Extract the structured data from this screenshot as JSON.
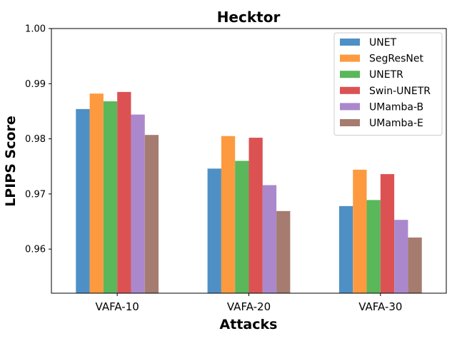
{
  "chart_data": {
    "type": "bar",
    "title": "Hecktor",
    "xlabel": "Attacks",
    "ylabel": "LPIPS Score",
    "categories": [
      "VAFA-10",
      "VAFA-20",
      "VAFA-30"
    ],
    "ylim": [
      0.952,
      1.0
    ],
    "yticks": [
      0.96,
      0.97,
      0.98,
      0.99,
      1.0
    ],
    "ytick_labels": [
      "0.96",
      "0.97",
      "0.98",
      "0.99",
      "1.00"
    ],
    "legend_position": "top-right",
    "grid": false,
    "series": [
      {
        "name": "UNET",
        "color": "#4e90c6",
        "values": [
          0.9854,
          0.9746,
          0.9678
        ]
      },
      {
        "name": "SegResNet",
        "color": "#fd9a3f",
        "values": [
          0.9882,
          0.9805,
          0.9744
        ]
      },
      {
        "name": "UNETR",
        "color": "#5ab75a",
        "values": [
          0.9868,
          0.976,
          0.9689
        ]
      },
      {
        "name": "Swin-UNETR",
        "color": "#dc5253",
        "values": [
          0.9885,
          0.9802,
          0.9736
        ]
      },
      {
        "name": "UMamba-B",
        "color": "#ab88cc",
        "values": [
          0.9844,
          0.9716,
          0.9653
        ]
      },
      {
        "name": "UMamba-E",
        "color": "#a57c6f",
        "values": [
          0.9807,
          0.9669,
          0.9621
        ]
      }
    ]
  }
}
